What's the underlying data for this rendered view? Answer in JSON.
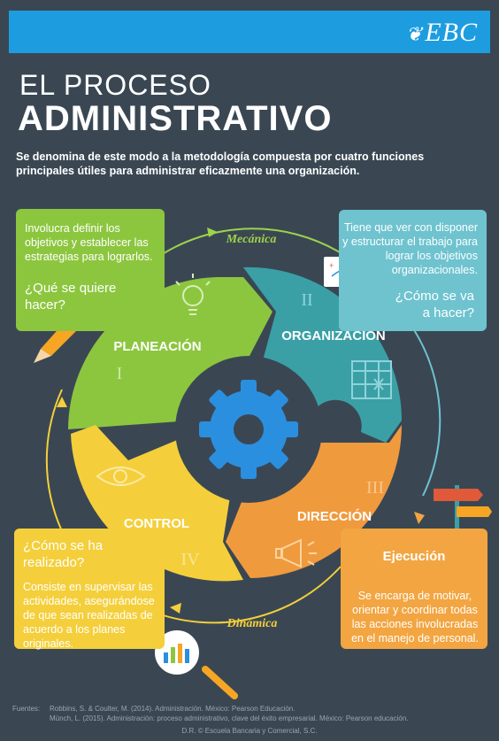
{
  "brand": {
    "logo_text": "EBC"
  },
  "title": {
    "line1": "EL PROCESO",
    "line2": "ADMINISTRATIVO"
  },
  "intro": "Se denomina de este modo a la metodología compuesta por cuatro funciones principales útiles para administrar eficazmente una organización.",
  "labels": {
    "mecanica": "Mecánica",
    "dinamica": "Dinámica"
  },
  "segments": [
    {
      "name": "PLANEACIÓN",
      "numeral": "I",
      "color": "#8cc63f"
    },
    {
      "name": "ORGANIZACIÓN",
      "numeral": "II",
      "color": "#3aa0a6"
    },
    {
      "name": "DIRECCIÓN",
      "numeral": "III",
      "color": "#f09a3e"
    },
    {
      "name": "CONTROL",
      "numeral": "IV",
      "color": "#f4cf3b"
    }
  ],
  "boxes": {
    "planeacion": {
      "desc": "Involucra definir los objetivos y establecer las estrategias para lograrlos.",
      "question": "¿Qué se quiere hacer?"
    },
    "organizacion": {
      "desc": "Tiene que ver con disponer y estructurar el trabajo para lograr los objetivos organizacionales.",
      "question": "¿Cómo se va a hacer?"
    },
    "control": {
      "question": "¿Cómo se ha realizado?",
      "desc": "Consiste en supervisar las actividades, asegurándose de que sean realizadas de acuerdo a los planes originales."
    },
    "direccion": {
      "heading": "Ejecución",
      "desc": "Se encarga de motivar, orientar y coordinar todas las acciones involucradas en el manejo de personal."
    }
  },
  "footer": {
    "label": "Fuentes:",
    "ref1": "Robbins, S. & Coulter, M. (2014). Administración. México: Pearson Educación.",
    "ref2": "Münch, L. (2015). Administración: proceso administrativo, clave del éxito empresarial. México: Pearson educación.",
    "copyright": "D.R. © Escuela Bancaria y Comercial, S.C."
  },
  "colors": {
    "header": "#1d9de0",
    "background": "#3a4753",
    "gear": "#2b8fe0"
  }
}
